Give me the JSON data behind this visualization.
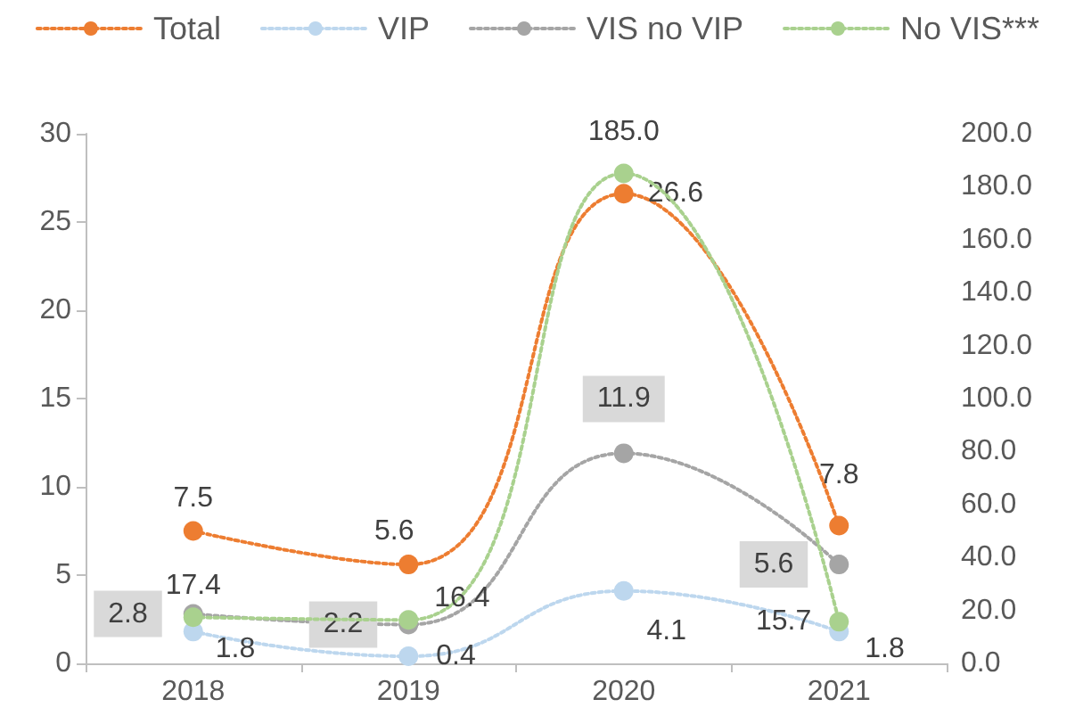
{
  "chart_data": {
    "type": "line",
    "categories": [
      "2018",
      "2019",
      "2020",
      "2021"
    ],
    "series": [
      {
        "name": "Total",
        "color": "#ed7d31",
        "values": [
          7.5,
          5.6,
          26.6,
          7.8
        ],
        "value_labels": [
          "7.5",
          "5.6",
          "26.6",
          "7.8"
        ]
      },
      {
        "name": "VIP",
        "color": "#bdd7ee",
        "values": [
          1.8,
          0.4,
          4.1,
          1.8
        ],
        "value_labels": [
          "1.8",
          "0.4",
          "4.1",
          "1.8"
        ]
      },
      {
        "name": "VIS no VIP",
        "color": "#a5a5a5",
        "values": [
          2.8,
          2.2,
          11.9,
          5.6
        ],
        "value_labels": [
          "2.8",
          "2.2",
          "11.9",
          "5.6"
        ]
      },
      {
        "name": "No VIS***",
        "color": "#a9d18e",
        "values": [
          17.4,
          16.4,
          185.0,
          15.7
        ],
        "axis": "y2",
        "value_labels": [
          "17.4",
          "16.4",
          "185.0",
          "15.7"
        ]
      }
    ],
    "ylim": [
      0,
      30
    ],
    "yticks": [
      0,
      5,
      10,
      15,
      20,
      25,
      30
    ],
    "y2lim": [
      0,
      200
    ],
    "y2ticks": [
      {
        "value": 0,
        "label": "0.0"
      },
      {
        "value": 20,
        "label": "20.0"
      },
      {
        "value": 40,
        "label": "40.0"
      },
      {
        "value": 60,
        "label": "60.0"
      },
      {
        "value": 80,
        "label": "80.0"
      },
      {
        "value": 100,
        "label": "100.0"
      },
      {
        "value": 120,
        "label": "120.0"
      },
      {
        "value": 140,
        "label": "140.0"
      },
      {
        "value": 160,
        "label": "160.0"
      },
      {
        "value": 180,
        "label": "180.0"
      },
      {
        "value": 200,
        "label": "200.0"
      }
    ],
    "grid": false,
    "legend": "top",
    "marker": "circle",
    "line_style": "dotted"
  }
}
